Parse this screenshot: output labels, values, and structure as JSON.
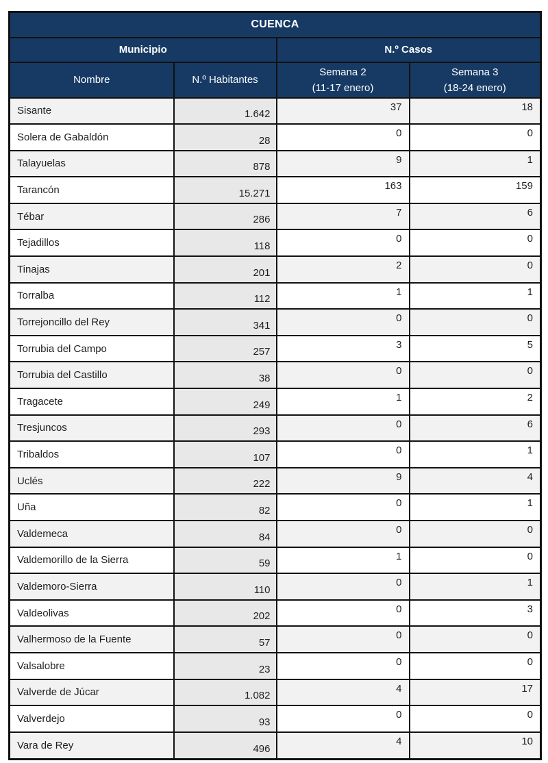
{
  "colors": {
    "header_bg": "#173a64",
    "header_text": "#ffffff",
    "row_alt_bg": "#f2f2f2",
    "row_bg": "#ffffff",
    "habitantes_col_bg": "#e8e8e8",
    "border": "#111111",
    "body_text": "#1f1f1f"
  },
  "table": {
    "title": "CUENCA",
    "groups": [
      {
        "label": "Municipio"
      },
      {
        "label": "N.º Casos"
      }
    ],
    "columns": [
      {
        "label": "Nombre"
      },
      {
        "label": "N.º Habitantes"
      },
      {
        "label_line1": "Semana 2",
        "label_line2": "(11-17 enero)"
      },
      {
        "label_line1": "Semana 3",
        "label_line2": "(18-24 enero)"
      }
    ],
    "rows": [
      {
        "nombre": "Sisante",
        "habitantes": "1.642",
        "semana2": "37",
        "semana3": "18"
      },
      {
        "nombre": "Solera de Gabaldón",
        "habitantes": "28",
        "semana2": "0",
        "semana3": "0"
      },
      {
        "nombre": "Talayuelas",
        "habitantes": "878",
        "semana2": "9",
        "semana3": "1"
      },
      {
        "nombre": "Tarancón",
        "habitantes": "15.271",
        "semana2": "163",
        "semana3": "159"
      },
      {
        "nombre": "Tébar",
        "habitantes": "286",
        "semana2": "7",
        "semana3": "6"
      },
      {
        "nombre": "Tejadillos",
        "habitantes": "118",
        "semana2": "0",
        "semana3": "0"
      },
      {
        "nombre": "Tinajas",
        "habitantes": "201",
        "semana2": "2",
        "semana3": "0"
      },
      {
        "nombre": "Torralba",
        "habitantes": "112",
        "semana2": "1",
        "semana3": "1"
      },
      {
        "nombre": "Torrejoncillo del Rey",
        "habitantes": "341",
        "semana2": "0",
        "semana3": "0"
      },
      {
        "nombre": "Torrubia del Campo",
        "habitantes": "257",
        "semana2": "3",
        "semana3": "5"
      },
      {
        "nombre": "Torrubia del Castillo",
        "habitantes": "38",
        "semana2": "0",
        "semana3": "0"
      },
      {
        "nombre": "Tragacete",
        "habitantes": "249",
        "semana2": "1",
        "semana3": "2"
      },
      {
        "nombre": "Tresjuncos",
        "habitantes": "293",
        "semana2": "0",
        "semana3": "6"
      },
      {
        "nombre": "Tribaldos",
        "habitantes": "107",
        "semana2": "0",
        "semana3": "1"
      },
      {
        "nombre": "Uclés",
        "habitantes": "222",
        "semana2": "9",
        "semana3": "4"
      },
      {
        "nombre": "Uña",
        "habitantes": "82",
        "semana2": "0",
        "semana3": "1"
      },
      {
        "nombre": "Valdemeca",
        "habitantes": "84",
        "semana2": "0",
        "semana3": "0"
      },
      {
        "nombre": "Valdemorillo de la Sierra",
        "habitantes": "59",
        "semana2": "1",
        "semana3": "0"
      },
      {
        "nombre": "Valdemoro-Sierra",
        "habitantes": "110",
        "semana2": "0",
        "semana3": "1"
      },
      {
        "nombre": "Valdeolivas",
        "habitantes": "202",
        "semana2": "0",
        "semana3": "3"
      },
      {
        "nombre": "Valhermoso de la Fuente",
        "habitantes": "57",
        "semana2": "0",
        "semana3": "0"
      },
      {
        "nombre": "Valsalobre",
        "habitantes": "23",
        "semana2": "0",
        "semana3": "0"
      },
      {
        "nombre": "Valverde de Júcar",
        "habitantes": "1.082",
        "semana2": "4",
        "semana3": "17"
      },
      {
        "nombre": "Valverdejo",
        "habitantes": "93",
        "semana2": "0",
        "semana3": "0"
      },
      {
        "nombre": "Vara de Rey",
        "habitantes": "496",
        "semana2": "4",
        "semana3": "10"
      }
    ]
  }
}
